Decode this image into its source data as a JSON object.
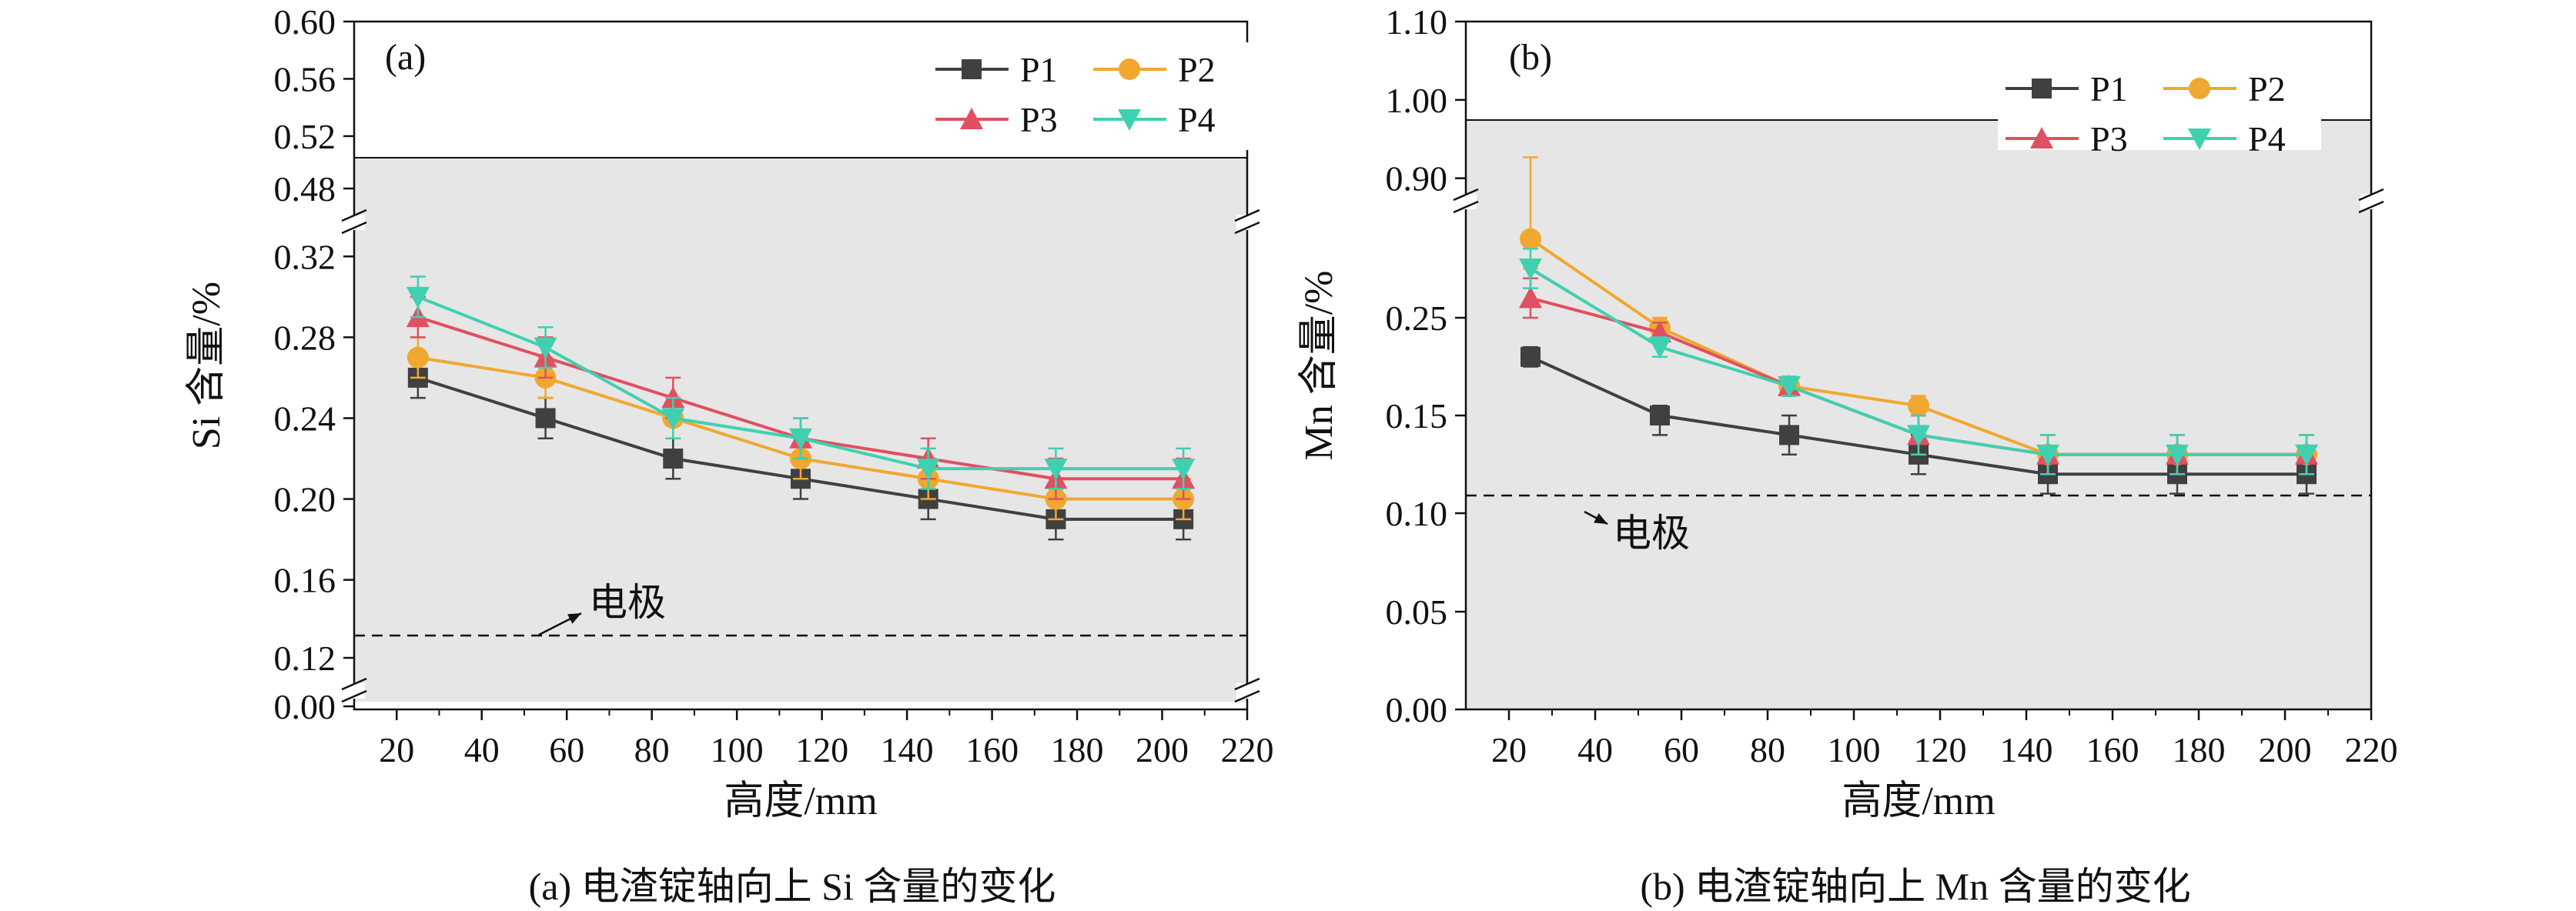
{
  "chart_data": [
    {
      "type": "line",
      "panel_label": "(a)",
      "xlabel": "高度/mm",
      "ylabel": "Si 含量/%",
      "caption": "(a) 电渣锭轴向上 Si 含量的变化",
      "x": [
        25,
        55,
        85,
        115,
        145,
        175,
        205
      ],
      "xlim": [
        10,
        220
      ],
      "xticks": [
        "20",
        "40",
        "60",
        "80",
        "100",
        "120",
        "140",
        "160",
        "180",
        "200",
        "220"
      ],
      "yaxis": "broken",
      "yticks": [
        "0.60",
        "0.56",
        "0.52",
        "0.48",
        "0.32",
        "0.28",
        "0.24",
        "0.20",
        "0.16",
        "0.12",
        "0.00"
      ],
      "background_band": [
        0.11,
        0.5
      ],
      "series": [
        {
          "name": "P1",
          "color": "#404040",
          "marker": "square",
          "values": [
            0.26,
            0.24,
            0.22,
            0.21,
            0.2,
            0.19,
            0.19
          ],
          "error": [
            0.01,
            0.01,
            0.01,
            0.01,
            0.01,
            0.01,
            0.01
          ]
        },
        {
          "name": "P2",
          "color": "#f0a830",
          "marker": "circle",
          "values": [
            0.27,
            0.26,
            0.24,
            0.22,
            0.21,
            0.2,
            0.2
          ],
          "error": [
            0.01,
            0.01,
            0.01,
            0.01,
            0.01,
            0.01,
            0.01
          ]
        },
        {
          "name": "P3",
          "color": "#e05060",
          "marker": "triangle-up",
          "values": [
            0.29,
            0.27,
            0.25,
            0.23,
            0.22,
            0.21,
            0.21
          ],
          "error": [
            0.01,
            0.01,
            0.01,
            0.01,
            0.01,
            0.01,
            0.01
          ]
        },
        {
          "name": "P4",
          "color": "#40d0b0",
          "marker": "triangle-down",
          "values": [
            0.3,
            0.275,
            0.24,
            0.23,
            0.215,
            0.215,
            0.215
          ],
          "error": [
            0.01,
            0.01,
            0.01,
            0.01,
            0.01,
            0.01,
            0.01
          ]
        }
      ],
      "reference": {
        "label": "电极",
        "value": 0.13
      }
    },
    {
      "type": "line",
      "panel_label": "(b)",
      "xlabel": "高度/mm",
      "ylabel": "Mn 含量/%",
      "caption": "(b) 电渣锭轴向上 Mn 含量的变化",
      "x": [
        25,
        55,
        85,
        115,
        145,
        175,
        205
      ],
      "xlim": [
        10,
        220
      ],
      "xticks": [
        "20",
        "40",
        "60",
        "80",
        "100",
        "120",
        "140",
        "160",
        "180",
        "200",
        "220"
      ],
      "yaxis": "broken",
      "yticks": [
        "1.10",
        "1.00",
        "0.90",
        "0.25",
        "0.15",
        "0.10",
        "0.05",
        "0.00"
      ],
      "background_band": [
        0.0,
        1.0
      ],
      "series": [
        {
          "name": "P1",
          "color": "#404040",
          "marker": "square",
          "values": [
            0.21,
            0.15,
            0.14,
            0.13,
            0.12,
            0.12,
            0.12
          ],
          "error": [
            0.01,
            0.01,
            0.01,
            0.01,
            0.01,
            0.01,
            0.01
          ]
        },
        {
          "name": "P2",
          "color": "#f0a830",
          "marker": "circle",
          "values": [
            0.29,
            0.24,
            0.18,
            0.16,
            0.13,
            0.13,
            0.13
          ],
          "error": [
            0.015,
            0.01,
            0.01,
            0.01,
            0.01,
            0.01,
            0.01
          ]
        },
        {
          "name": "P3",
          "color": "#e05060",
          "marker": "triangle-up",
          "values": [
            0.26,
            0.235,
            0.18,
            0.14,
            0.13,
            0.13,
            0.13
          ],
          "error": [
            0.01,
            0.01,
            0.01,
            0.01,
            0.01,
            0.01,
            0.01
          ]
        },
        {
          "name": "P4",
          "color": "#40d0b0",
          "marker": "triangle-down",
          "values": [
            0.275,
            0.22,
            0.18,
            0.14,
            0.13,
            0.13,
            0.13
          ],
          "error": [
            0.01,
            0.01,
            0.01,
            0.01,
            0.01,
            0.01,
            0.01
          ]
        }
      ],
      "reference": {
        "label": "电极",
        "value": 0.107
      }
    }
  ]
}
